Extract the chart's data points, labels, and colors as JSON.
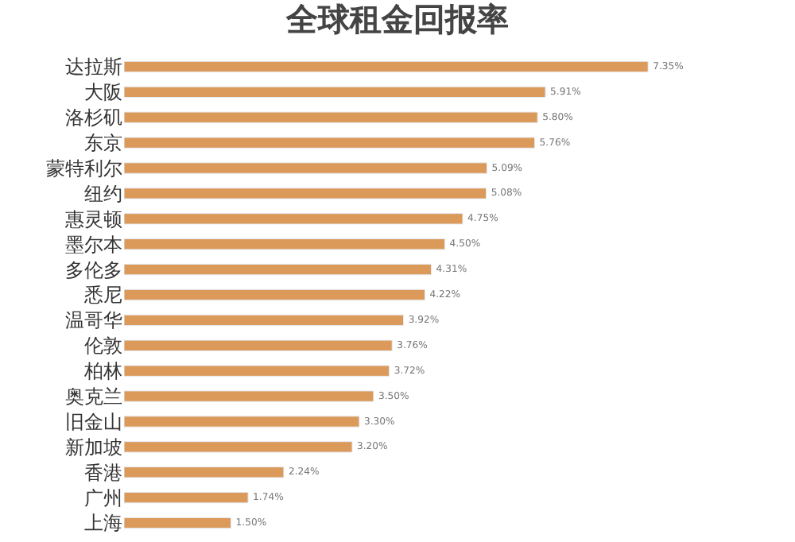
{
  "chart_data": {
    "type": "bar",
    "orientation": "horizontal",
    "title": "全球租金回报率",
    "categories": [
      "达拉斯",
      "大阪",
      "洛杉矶",
      "东京",
      "蒙特利尔",
      "纽约",
      "惠灵顿",
      "墨尔本",
      "多伦多",
      "悉尼",
      "温哥华",
      "伦敦",
      "柏林",
      "奥克兰",
      "旧金山",
      "新加坡",
      "香港",
      "广州",
      "上海"
    ],
    "values": [
      7.35,
      5.91,
      5.8,
      5.76,
      5.09,
      5.08,
      4.75,
      4.5,
      4.31,
      4.22,
      3.92,
      3.76,
      3.72,
      3.5,
      3.3,
      3.2,
      2.24,
      1.74,
      1.5
    ],
    "value_labels": [
      "7.35%",
      "5.91%",
      "5.80%",
      "5.76%",
      "5.09%",
      "5.08%",
      "4.75%",
      "4.50%",
      "4.31%",
      "4.22%",
      "3.92%",
      "3.76%",
      "3.72%",
      "3.50%",
      "3.30%",
      "3.20%",
      "2.24%",
      "1.74%",
      "1.50%"
    ],
    "color": "#dc9a5a"
  }
}
